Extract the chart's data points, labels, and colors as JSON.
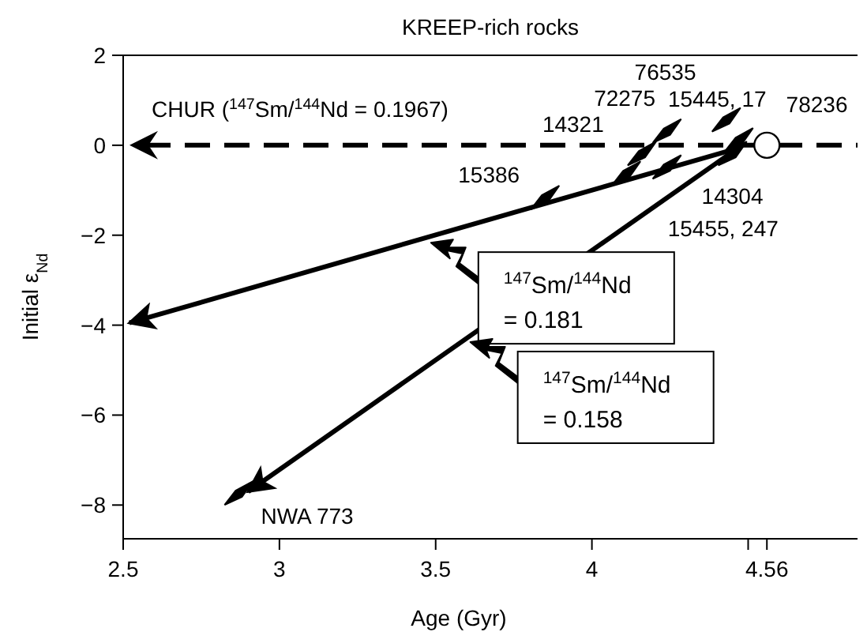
{
  "chart_data": {
    "type": "scatter",
    "title": "KREEP-rich rocks",
    "xlabel": "Age (Gyr)",
    "ylabel": "Initial ε$_{Nd}$",
    "xlim": [
      2.5,
      4.85
    ],
    "ylim": [
      -8.75,
      2
    ],
    "xticks": [
      2.5,
      3,
      3.5,
      4,
      {
        "value": 4.5,
        "label": null
      },
      4.56
    ],
    "yticks": [
      -8,
      -6,
      -4,
      -2,
      0,
      2
    ],
    "ref_lines": [
      {
        "axis": "y",
        "value": 0,
        "line_style": "dashed",
        "color": "#000000"
      }
    ],
    "series": [
      {
        "type": "line",
        "name": "$^{147}$Sm/$^{144}$Nd = 0.181",
        "color": "#000000",
        "line_style": "solid",
        "x": [
          4.45,
          2.52
        ],
        "values": [
          -0.1,
          -3.95
        ]
      },
      {
        "type": "line",
        "name": "$^{147}$Sm/$^{144}$Nd = 0.158",
        "color": "#000000",
        "line_style": "solid",
        "x": [
          4.48,
          2.9
        ],
        "values": [
          0,
          -7.7
        ]
      },
      {
        "type": "scatter",
        "color": "#000000",
        "marker": "diamond",
        "x": [
          3.85,
          4.11,
          4.16,
          4.24,
          4.24,
          4.43,
          4.47,
          4.45,
          2.87
        ],
        "values": [
          -1.18,
          -0.64,
          -0.2,
          0.3,
          -0.5,
          0.55,
          0.1,
          -0.2,
          -7.75
        ]
      },
      {
        "type": "scatter",
        "color": "#ffffff",
        "marker": "circle",
        "x": [
          4.56
        ],
        "values": [
          0
        ]
      }
    ],
    "annotations": [
      "CHUR ($^{147}$Sm/$^{144}$Nd = 0.1967)",
      {
        "text": "15386",
        "x": 3.85,
        "y": -1.18
      },
      {
        "text": "72275",
        "x": 4.11,
        "y": -0.64
      },
      {
        "text": "14321",
        "x": 4.16,
        "y": -0.2
      },
      {
        "text": "76535",
        "x": 4.24,
        "y": 0.3
      },
      {
        "text": "14304",
        "x": 4.24,
        "y": -0.5
      },
      {
        "text": "15445, 17",
        "x": 4.43,
        "y": 0.55
      },
      {
        "text": "78236",
        "x": 4.47,
        "y": 0.1
      },
      {
        "text": "15455, 247",
        "x": 4.45,
        "y": -0.2
      },
      {
        "text": "NWA 773",
        "x": 2.87,
        "y": -7.75
      }
    ]
  }
}
